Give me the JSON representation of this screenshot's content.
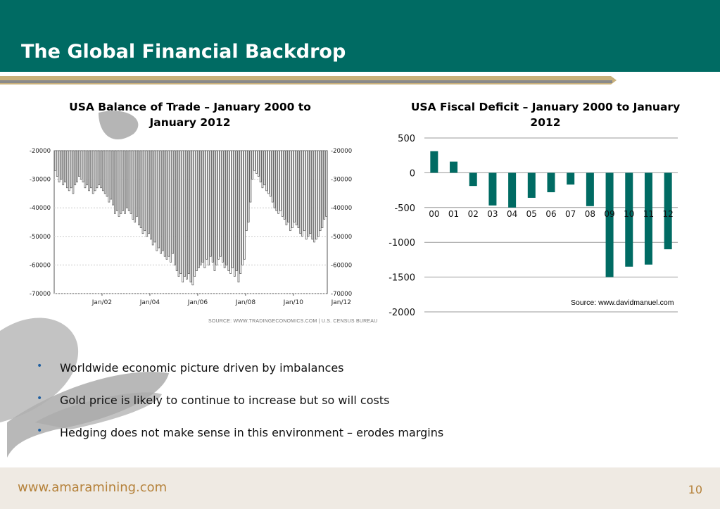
{
  "slide": {
    "title": "The Global Financial Backdrop",
    "footer_url": "www.amaramining.com",
    "page_number": "10",
    "accent_color": "#006b63",
    "footer_color": "#b5823b"
  },
  "bullets": [
    "Worldwide economic picture driven by imbalances",
    "Gold price is likely to continue to increase but so will costs",
    "Hedging does not make sense in this environment – erodes margins"
  ],
  "chart_data": [
    {
      "id": "trade",
      "type": "bar",
      "title": "USA Balance of Trade – January 2000 to January 2012",
      "source": "SOURCE: WWW.TRADINGECONOMICS.COM | U.S. CENSUS BUREAU",
      "xlabel": "",
      "ylabel": "",
      "x_ticks": [
        "Jan/02",
        "Jan/04",
        "Jan/06",
        "Jan/08",
        "Jan/10",
        "Jan/12"
      ],
      "y_ticks": [
        -20000,
        -30000,
        -40000,
        -50000,
        -60000,
        -70000
      ],
      "ylim": [
        -70000,
        -20000
      ],
      "baseline": -20000,
      "grid": true,
      "bar_color": "#ffffff",
      "bar_edge": "#555555",
      "values": [
        -27000,
        -29000,
        -31000,
        -30000,
        -32000,
        -31000,
        -33000,
        -34000,
        -33000,
        -35000,
        -32000,
        -31000,
        -29000,
        -30000,
        -31000,
        -33000,
        -32000,
        -34000,
        -33000,
        -35000,
        -34000,
        -33000,
        -32000,
        -33000,
        -34000,
        -35000,
        -36000,
        -38000,
        -37000,
        -39000,
        -42000,
        -41000,
        -43000,
        -42000,
        -41000,
        -42000,
        -40000,
        -41000,
        -42000,
        -44000,
        -45000,
        -43000,
        -46000,
        -47000,
        -49000,
        -48000,
        -50000,
        -49000,
        -51000,
        -53000,
        -52000,
        -55000,
        -54000,
        -56000,
        -55000,
        -57000,
        -58000,
        -57000,
        -59000,
        -56000,
        -60000,
        -62000,
        -64000,
        -63000,
        -66000,
        -64000,
        -65000,
        -63000,
        -66000,
        -67000,
        -64000,
        -62000,
        -61000,
        -60000,
        -59000,
        -61000,
        -58000,
        -60000,
        -57000,
        -59000,
        -62000,
        -60000,
        -58000,
        -57000,
        -59000,
        -61000,
        -60000,
        -62000,
        -63000,
        -61000,
        -64000,
        -62000,
        -66000,
        -63000,
        -60000,
        -58000,
        -48000,
        -45000,
        -38000,
        -30000,
        -27000,
        -28000,
        -29000,
        -31000,
        -33000,
        -32000,
        -34000,
        -35000,
        -36000,
        -38000,
        -40000,
        -41000,
        -42000,
        -41000,
        -43000,
        -44000,
        -46000,
        -45000,
        -48000,
        -47000,
        -45000,
        -46000,
        -47000,
        -49000,
        -50000,
        -48000,
        -51000,
        -50000,
        -49000,
        -51000,
        -52000,
        -51000,
        -50000,
        -48000,
        -47000,
        -44000,
        -43000
      ]
    },
    {
      "id": "deficit",
      "type": "bar",
      "title": "USA Fiscal Deficit – January 2000 to January 2012",
      "source": "Source: www.davidmanuel.com",
      "xlabel": "",
      "ylabel": "",
      "categories": [
        "00",
        "01",
        "02",
        "03",
        "04",
        "05",
        "06",
        "07",
        "08",
        "09",
        "10",
        "11",
        "12"
      ],
      "values": [
        310,
        160,
        -190,
        -470,
        -500,
        -360,
        -280,
        -170,
        -480,
        -1500,
        -1350,
        -1320,
        -1100
      ],
      "y_ticks": [
        500,
        0,
        -500,
        -1000,
        -1500,
        -2000
      ],
      "ylim": [
        -2000,
        500
      ],
      "grid": true,
      "bar_color": "#006b63"
    }
  ]
}
